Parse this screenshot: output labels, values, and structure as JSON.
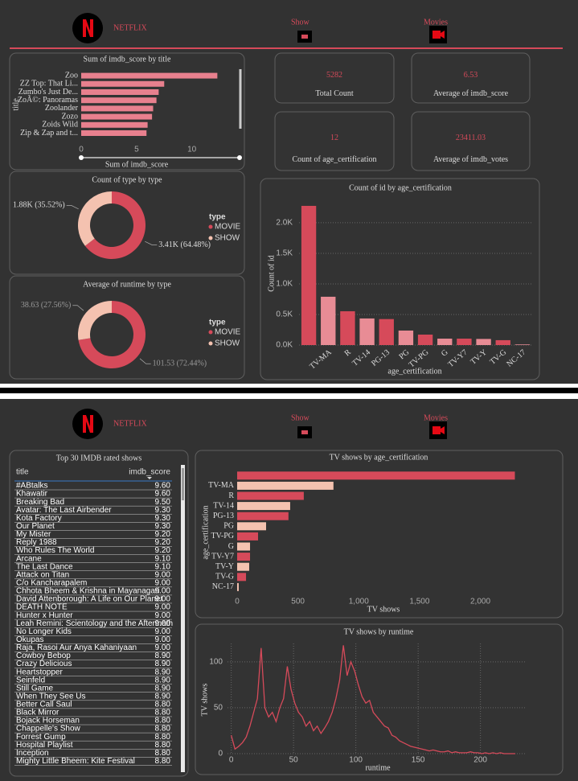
{
  "header_top": {
    "brand": "NETFLIX",
    "nav": [
      "Show",
      "Movies"
    ]
  },
  "header_bottom": {
    "brand": "NETFLIX",
    "nav": [
      "Show",
      "Movies"
    ]
  },
  "kpis": [
    {
      "value": 5282,
      "label": "Total Count"
    },
    {
      "value": 6.53,
      "label": "Average of imdb_score"
    },
    {
      "value": 12,
      "label": "Count of age_certification"
    },
    {
      "value": 23411.03,
      "label": "Average of imdb_votes"
    }
  ],
  "table": {
    "title": "Top 30 IMDB rated shows",
    "columns": [
      "title",
      "imdb_score"
    ],
    "rows": [
      [
        "#ABtalks",
        "9.60"
      ],
      [
        "Khawatir",
        "9.60"
      ],
      [
        "Breaking Bad",
        "9.50"
      ],
      [
        "Avatar: The Last Airbender",
        "9.30"
      ],
      [
        "Kota Factory",
        "9.30"
      ],
      [
        "Our Planet",
        "9.30"
      ],
      [
        "My Mister",
        "9.20"
      ],
      [
        "Reply 1988",
        "9.20"
      ],
      [
        "Who Rules The World",
        "9.20"
      ],
      [
        "Arcane",
        "9.10"
      ],
      [
        "The Last Dance",
        "9.10"
      ],
      [
        "Attack on Titan",
        "9.00"
      ],
      [
        "C/o Kancharapalem",
        "9.00"
      ],
      [
        "Chhota Bheem & Krishna in Mayanagari",
        "9.00"
      ],
      [
        "David Attenborough: A Life on Our Planet",
        "9.00"
      ],
      [
        "DEATH NOTE",
        "9.00"
      ],
      [
        "Hunter x Hunter",
        "9.00"
      ],
      [
        "Leah Remini: Scientology and the Aftermath",
        "9.00"
      ],
      [
        "No Longer Kids",
        "9.00"
      ],
      [
        "Okupas",
        "9.00"
      ],
      [
        "Raja, Rasoi Aur Anya Kahaniyaan",
        "9.00"
      ],
      [
        "Cowboy Bebop",
        "8.90"
      ],
      [
        "Crazy Delicious",
        "8.90"
      ],
      [
        "Heartstopper",
        "8.90"
      ],
      [
        "Seinfeld",
        "8.90"
      ],
      [
        "Still Game",
        "8.90"
      ],
      [
        "When They See Us",
        "8.90"
      ],
      [
        "Better Call Saul",
        "8.80"
      ],
      [
        "Black Mirror",
        "8.80"
      ],
      [
        "Bojack Horseman",
        "8.80"
      ],
      [
        "Chappelle's Show",
        "8.80"
      ],
      [
        "Forrest Gump",
        "8.80"
      ],
      [
        "Hospital Playlist",
        "8.80"
      ],
      [
        "Inception",
        "8.80"
      ],
      [
        "Mighty Little Bheem: Kite Festival",
        "8.80"
      ]
    ]
  },
  "chart_data": [
    {
      "type": "hbar",
      "title": "Sum of imdb_score by title",
      "x_label": "Sum of imdb_score",
      "y_label": "title",
      "categories": [
        "Zoo",
        "ZZ Top: That Li...",
        "Zumbo's Just De...",
        "ZoÃ©: Panoramas",
        "Zoolander",
        "Zozo",
        "Zoids Wild",
        "Zip & Zap and t..."
      ],
      "values": [
        12.3,
        7.5,
        7.0,
        6.8,
        6.5,
        6.4,
        6.0,
        5.9
      ],
      "color": "#e8808e",
      "xlim": [
        0,
        13
      ],
      "xticks": [
        0,
        5,
        10
      ],
      "grid": false
    },
    {
      "type": "donut",
      "title": "Count of type by type",
      "legend_title": "type",
      "categories": [
        "MOVIE",
        "SHOW"
      ],
      "values": [
        64.48,
        35.52
      ],
      "value_labels": [
        "3.41K (64.48%)",
        "1.88K (35.52%)"
      ],
      "colors": [
        "#d64a5a",
        "#f4c2b0"
      ],
      "legend": "right"
    },
    {
      "type": "donut",
      "title": "Average of runtime by type",
      "legend_title": "type",
      "categories": [
        "MOVIE",
        "SHOW"
      ],
      "values": [
        101.53,
        38.63
      ],
      "value_labels": [
        "101.53 (72.44%)",
        "38.63 (27.56%)"
      ],
      "colors": [
        "#d64a5a",
        "#f4c2b0"
      ],
      "legend": "right"
    },
    {
      "type": "vbar",
      "title": "Count of id by age_certification",
      "x_label": "age_certification",
      "y_label": "Count of id",
      "categories": [
        null,
        "TV-MA",
        "R",
        "TV-14",
        "PG-13",
        "PG",
        "TV-PG",
        "G",
        "TV-Y7",
        "TV-Y",
        "TV-G",
        "NC-17"
      ],
      "values": [
        2276,
        790,
        553,
        435,
        425,
        237,
        171,
        105,
        105,
        100,
        80,
        10
      ],
      "colors": [
        "#d64a5a",
        "#e88c95"
      ],
      "ylim": [
        0,
        2420
      ],
      "yticks": [
        {
          "value": 0,
          "label": "0.0K"
        },
        {
          "value": 500,
          "label": "0.5K"
        },
        {
          "value": 1000,
          "label": "1.0K"
        },
        {
          "value": 1500,
          "label": "1.5K"
        },
        {
          "value": 2000,
          "label": "2.0K"
        }
      ],
      "grid": true
    },
    {
      "type": "hbar",
      "title": "TV shows by age_certification",
      "x_label": "TV shows",
      "y_label": "age_certification",
      "categories": [
        null,
        "TV-MA",
        "R",
        "TV-14",
        "PG-13",
        "PG",
        "TV-PG",
        "G",
        "TV-Y7",
        "TV-Y",
        "TV-G",
        "NC-17"
      ],
      "values": [
        2284,
        792,
        548,
        436,
        422,
        238,
        172,
        106,
        106,
        99,
        73,
        13
      ],
      "colors": [
        "#d64a5a",
        "#f4c2b0"
      ],
      "xlim": [
        0,
        2380
      ],
      "xticks": [
        0,
        500,
        {
          "value": 1000,
          "label": "1,000"
        },
        {
          "value": 1500,
          "label": "1,500"
        },
        {
          "value": 2000,
          "label": "2,000"
        }
      ],
      "grid": false
    },
    {
      "type": "line",
      "title": "TV shows by runtime",
      "x_label": "runtime",
      "y_label": "TV shows",
      "color": "#d64a5a",
      "x": [
        0,
        3,
        6,
        9,
        12,
        15,
        18,
        21,
        24,
        27,
        30,
        33,
        36,
        39,
        42,
        45,
        48,
        51,
        54,
        57,
        60,
        63,
        66,
        69,
        72,
        75,
        78,
        81,
        84,
        87,
        90,
        93,
        96,
        99,
        102,
        105,
        108,
        111,
        114,
        117,
        120,
        123,
        126,
        129,
        132,
        135,
        138,
        141,
        144,
        147,
        150,
        153,
        156,
        159,
        162,
        165,
        168,
        171,
        174,
        177,
        180,
        183,
        186,
        189,
        192,
        195,
        198,
        201,
        204,
        207,
        210,
        213,
        216,
        219,
        222,
        225,
        228
      ],
      "values": [
        20,
        5,
        8,
        12,
        18,
        30,
        45,
        60,
        115,
        50,
        40,
        45,
        35,
        50,
        60,
        95,
        70,
        55,
        45,
        40,
        30,
        35,
        25,
        30,
        22,
        28,
        35,
        45,
        60,
        80,
        118,
        85,
        100,
        90,
        75,
        62,
        55,
        58,
        45,
        40,
        35,
        30,
        28,
        20,
        18,
        14,
        12,
        10,
        8,
        7,
        6,
        5,
        4,
        3,
        4,
        3,
        2,
        2,
        3,
        1,
        2,
        1,
        1,
        1,
        2,
        1,
        1,
        0,
        1,
        0,
        1,
        0,
        1,
        0,
        0,
        0,
        0
      ],
      "xlim": [
        -3,
        237
      ],
      "xticks": [
        0,
        50,
        100,
        150,
        200
      ],
      "ylim": [
        0,
        120
      ],
      "yticks": [
        0,
        50,
        100
      ],
      "grid": true
    }
  ]
}
